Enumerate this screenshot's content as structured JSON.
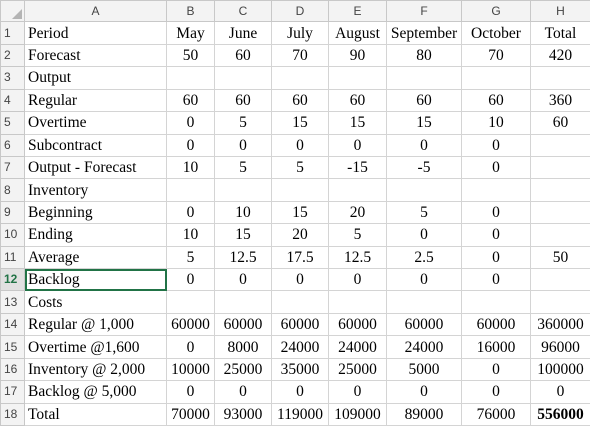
{
  "columns": [
    "A",
    "B",
    "C",
    "D",
    "E",
    "F",
    "G",
    "H"
  ],
  "rows": [
    {
      "num": "1",
      "cells": [
        "Period",
        "May",
        "June",
        "July",
        "August",
        "September",
        "October",
        "Total"
      ]
    },
    {
      "num": "2",
      "cells": [
        "Forecast",
        "50",
        "60",
        "70",
        "90",
        "80",
        "70",
        "420"
      ]
    },
    {
      "num": "3",
      "cells": [
        "Output",
        "",
        "",
        "",
        "",
        "",
        "",
        ""
      ]
    },
    {
      "num": "4",
      "cells": [
        "Regular",
        "60",
        "60",
        "60",
        "60",
        "60",
        "60",
        "360"
      ]
    },
    {
      "num": "5",
      "cells": [
        "Overtime",
        "0",
        "5",
        "15",
        "15",
        "15",
        "10",
        "60"
      ]
    },
    {
      "num": "6",
      "cells": [
        "Subcontract",
        "0",
        "0",
        "0",
        "0",
        "0",
        "0",
        ""
      ]
    },
    {
      "num": "7",
      "cells": [
        "Output - Forecast",
        "10",
        "5",
        "5",
        "-15",
        "-5",
        "0",
        ""
      ]
    },
    {
      "num": "8",
      "cells": [
        "Inventory",
        "",
        "",
        "",
        "",
        "",
        "",
        ""
      ]
    },
    {
      "num": "9",
      "cells": [
        "Beginning",
        "0",
        "10",
        "15",
        "20",
        "5",
        "0",
        ""
      ]
    },
    {
      "num": "10",
      "cells": [
        "Ending",
        "10",
        "15",
        "20",
        "5",
        "0",
        "0",
        ""
      ]
    },
    {
      "num": "11",
      "cells": [
        "Average",
        "5",
        "12.5",
        "17.5",
        "12.5",
        "2.5",
        "0",
        "50"
      ]
    },
    {
      "num": "12",
      "cells": [
        "Backlog",
        "0",
        "0",
        "0",
        "0",
        "0",
        "0",
        ""
      ]
    },
    {
      "num": "13",
      "cells": [
        "Costs",
        "",
        "",
        "",
        "",
        "",
        "",
        ""
      ]
    },
    {
      "num": "14",
      "cells": [
        "Regular @ 1,000",
        "60000",
        "60000",
        "60000",
        "60000",
        "60000",
        "60000",
        "360000"
      ]
    },
    {
      "num": "15",
      "cells": [
        "Overtime @1,600",
        "0",
        "8000",
        "24000",
        "24000",
        "24000",
        "16000",
        "96000"
      ]
    },
    {
      "num": "16",
      "cells": [
        "Inventory @ 2,000",
        "10000",
        "25000",
        "35000",
        "25000",
        "5000",
        "0",
        "100000"
      ]
    },
    {
      "num": "17",
      "cells": [
        "Backlog @ 5,000",
        "0",
        "0",
        "0",
        "0",
        "0",
        "0",
        "0"
      ]
    },
    {
      "num": "18",
      "cells": [
        "Total",
        "70000",
        "93000",
        "119000",
        "109000",
        "89000",
        "76000",
        "556000"
      ]
    }
  ]
}
